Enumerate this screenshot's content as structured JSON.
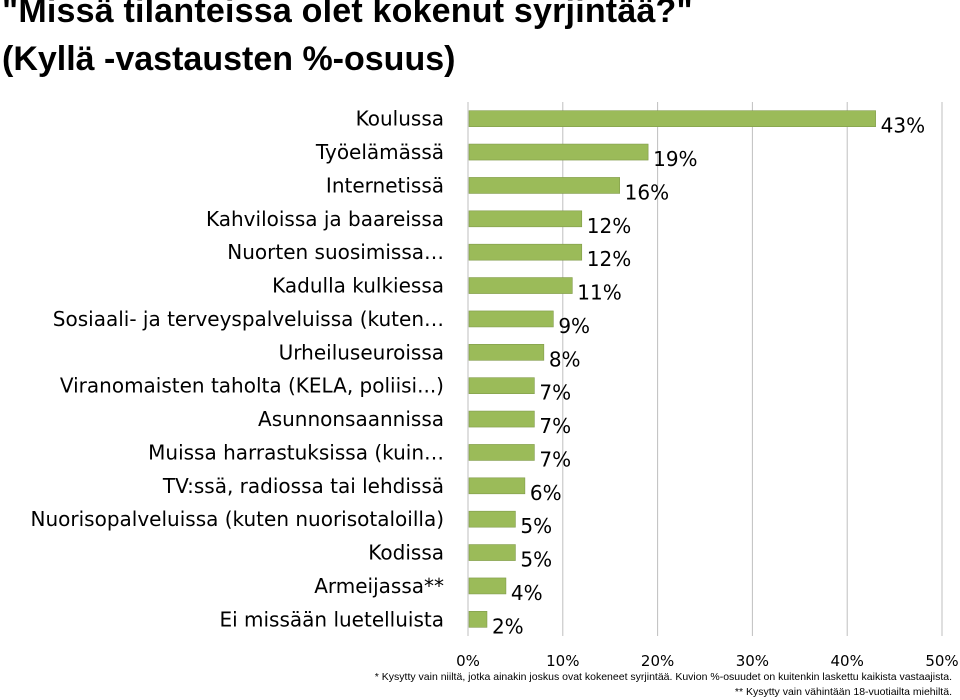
{
  "title_line1": "\"Missä tilanteissa olet kokenut syrjintää?\"",
  "title_line2": "(Kyllä -vastausten %-osuus)",
  "footnote_1": "* Kysytty vain niiltä, jotka ainakin joskus ovat kokeneet syrjintää.  Kuvion %-osuudet on kuitenkin laskettu kaikista vastaajista.",
  "footnote_2": "** Kysytty vain vähintään 18-vuotiailta miehiltä.",
  "colors": {
    "bar": "#9bbb59",
    "bar_stroke": "#7f9a48",
    "grid": "#bfbfbf"
  },
  "chart_data": {
    "type": "bar",
    "orientation": "horizontal",
    "categories": [
      "Koulussa",
      "Työelämässä",
      "Internetissä",
      "Kahviloissa ja baareissa",
      "Nuorten suosimissa…",
      "Kadulla kulkiessa",
      "Sosiaali- ja terveyspalveluissa (kuten…",
      "Urheiluseuroissa",
      "Viranomaisten taholta (KELA, poliisi...)",
      "Asunnonsaannissa",
      "Muissa harrastuksissa (kuin…",
      "TV:ssä, radiossa tai lehdissä",
      "Nuorisopalveluissa (kuten nuorisotaloilla)",
      "Kodissa",
      "Armeijassa**",
      "Ei missään luetelluista"
    ],
    "values": [
      43,
      19,
      16,
      12,
      12,
      11,
      9,
      8,
      7,
      7,
      7,
      6,
      5,
      5,
      4,
      2
    ],
    "data_labels": [
      "43%",
      "19%",
      "16%",
      "12%",
      "12%",
      "11%",
      "9%",
      "8%",
      "7%",
      "7%",
      "7%",
      "6%",
      "5%",
      "5%",
      "4%",
      "2%"
    ],
    "xlim": [
      0,
      50
    ],
    "xticks": [
      "0%",
      "10%",
      "20%",
      "30%",
      "40%",
      "50%"
    ],
    "grid": true,
    "legend": "none"
  }
}
